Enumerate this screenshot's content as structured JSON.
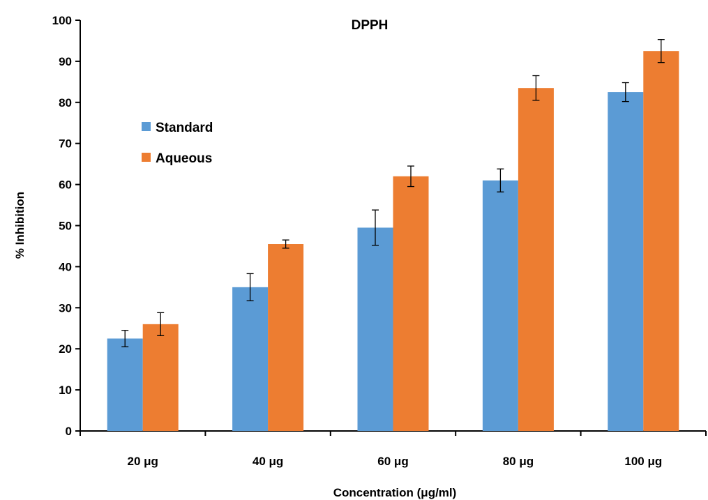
{
  "chart_data": {
    "type": "bar",
    "title": "DPPH",
    "xlabel": "Concentration (μg/ml)",
    "ylabel": "% Inhibition",
    "ylim": [
      0,
      100
    ],
    "yticks": [
      0,
      10,
      20,
      30,
      40,
      50,
      60,
      70,
      80,
      90,
      100
    ],
    "categories": [
      "20 μg",
      "40 μg",
      "60 μg",
      "80 μg",
      "100 μg"
    ],
    "series": [
      {
        "name": "Standard",
        "color": "#5B9BD5",
        "values": [
          22.5,
          35,
          49.5,
          61,
          82.5
        ],
        "errors": [
          2,
          3.3,
          4.3,
          2.8,
          2.3
        ]
      },
      {
        "name": "Aqueous",
        "color": "#ED7D31",
        "values": [
          26,
          45.5,
          62,
          83.5,
          92.5
        ],
        "errors": [
          2.8,
          1,
          2.5,
          3,
          2.8
        ]
      }
    ],
    "legend": {
      "position": "top-left"
    },
    "grid": false
  }
}
